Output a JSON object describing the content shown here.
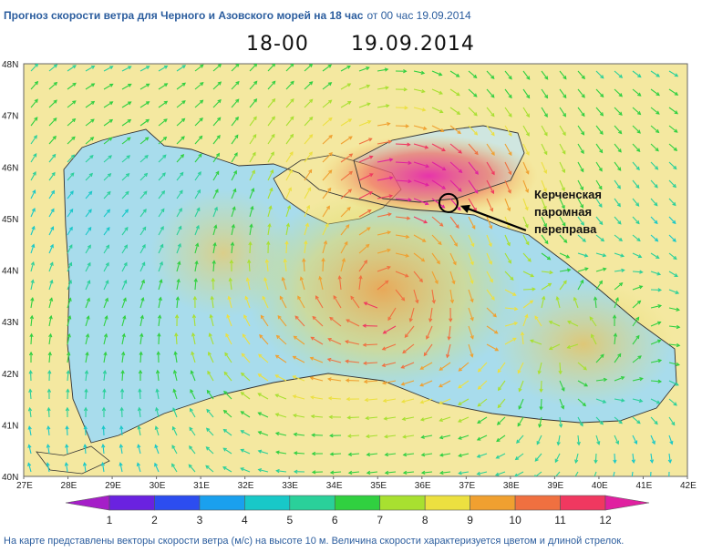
{
  "header": {
    "title": "Прогноз скорости ветра для Черного и Азовского морей на 18 час",
    "issued": "от 00 час 19.09.2014",
    "time": "18-00",
    "date": "19.09.2014"
  },
  "map": {
    "lat_labels": [
      "48N",
      "47N",
      "46N",
      "45N",
      "44N",
      "43N",
      "42N",
      "41N",
      "40N"
    ],
    "lon_labels": [
      "27E",
      "28E",
      "29E",
      "30E",
      "31E",
      "32E",
      "33E",
      "34E",
      "35E",
      "36E",
      "37E",
      "38E",
      "39E",
      "40E",
      "41E",
      "42E"
    ],
    "annotation": {
      "lines": [
        "Керченская",
        "паромная",
        "переправа"
      ],
      "lat": 45.3,
      "lon": 36.6
    }
  },
  "legend": {
    "labels": [
      "1",
      "2",
      "3",
      "4",
      "5",
      "6",
      "7",
      "8",
      "9",
      "10",
      "11",
      "12"
    ],
    "colors": [
      "#a51ec8",
      "#6a22e0",
      "#2c4df0",
      "#1aa0ee",
      "#18c8c8",
      "#2ad09a",
      "#30d040",
      "#a8e030",
      "#ece040",
      "#f0a030",
      "#f07040",
      "#f03860",
      "#e020a0"
    ]
  },
  "colors": {
    "sea_low": "#a8dcec",
    "land": "#f4e8a0",
    "title": "#2b5d9e"
  },
  "footer": {
    "caption": "На карте представлены векторы скорости ветра (м/с) на высоте 10 м. Величина скорости характеризуется цветом и длиной стрелок."
  }
}
